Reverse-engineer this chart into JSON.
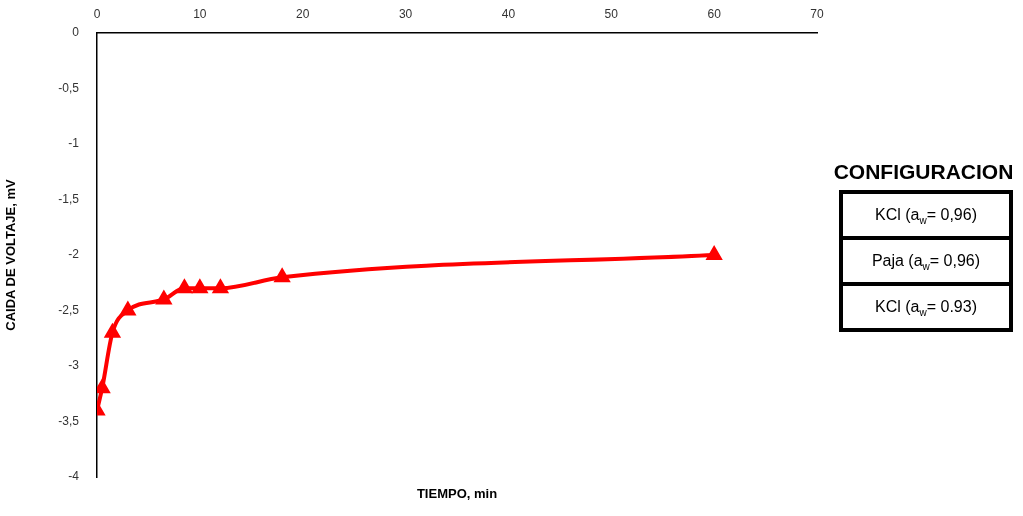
{
  "chart_data": {
    "type": "line",
    "xlabel": "TIEMPO, min",
    "ylabel": "CAIDA DE VOLTAJE, mV",
    "x": [
      0,
      0.5,
      1.5,
      3,
      6.5,
      8.5,
      10,
      12,
      18,
      60
    ],
    "series": [
      {
        "color": "#ff0000",
        "values": [
          -3.4,
          -3.2,
          -2.7,
          -2.5,
          -2.4,
          -2.3,
          -2.3,
          -2.3,
          -2.2,
          -2.0
        ]
      }
    ],
    "xlim": [
      0,
      70
    ],
    "xticks": [
      0,
      10,
      20,
      30,
      40,
      50,
      60,
      70
    ],
    "ylim": [
      -4,
      0
    ],
    "yticks": [
      {
        "value": -4,
        "label": "-4"
      },
      {
        "value": -3.5,
        "label": "-3,5"
      },
      {
        "value": -3,
        "label": "-3"
      },
      {
        "value": -2.5,
        "label": "-2,5"
      },
      {
        "value": -2,
        "label": "-2"
      },
      {
        "value": -1.5,
        "label": "-1,5"
      },
      {
        "value": -1,
        "label": "-1"
      },
      {
        "value": -0.5,
        "label": "-0,5"
      },
      {
        "value": 0,
        "label": "0"
      }
    ],
    "grid": false,
    "legend": false,
    "marker": "triangle",
    "line_style": "solid",
    "annotations": [
      "CONFIGURACION",
      "KCl (a$_{w}$= 0,96)",
      "Paja  (a$_{w}$= 0,96)",
      "KCl (a$_{w}$= 0.93)"
    ]
  }
}
